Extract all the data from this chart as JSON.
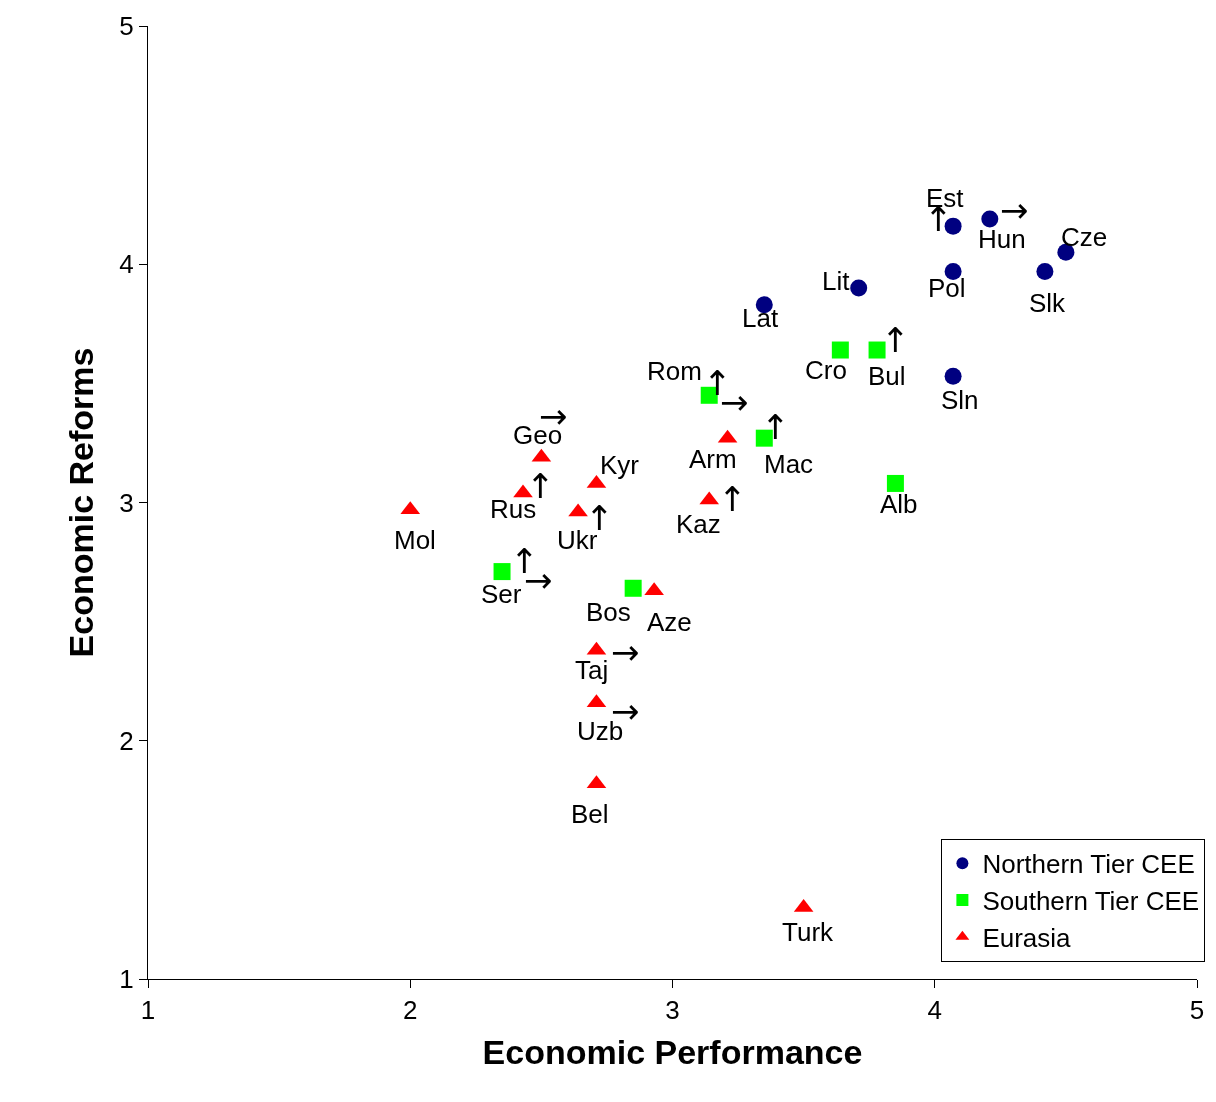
{
  "chart_data": {
    "type": "scatter",
    "xlabel": "Economic Performance",
    "ylabel": "Economic Reforms",
    "xlim": [
      1,
      5
    ],
    "xticks": [
      1,
      2,
      3,
      4,
      5
    ],
    "ylim": [
      1,
      5
    ],
    "yticks": [
      1,
      2,
      3,
      4,
      5
    ],
    "legend": "bottom right",
    "series": [
      {
        "name": "Northern Tier CEE",
        "color": "#000080",
        "marker": "circle",
        "x": [
          4.07,
          4.21,
          4.5,
          4.07,
          4.42,
          3.71,
          3.35,
          4.07
        ],
        "values": [
          4.16,
          4.19,
          4.05,
          3.97,
          3.97,
          3.9,
          3.83,
          3.53
        ]
      },
      {
        "name": "Southern Tier CEE",
        "color": "#00ff00",
        "marker": "square",
        "x": [
          3.64,
          3.78,
          3.14,
          3.35,
          3.85,
          2.35,
          2.85
        ],
        "values": [
          3.64,
          3.64,
          3.45,
          3.27,
          3.08,
          2.71,
          2.64
        ]
      },
      {
        "name": "Eurasia",
        "color": "#ff0000",
        "marker": "triangle",
        "x": [
          2.5,
          2.71,
          2.43,
          2.64,
          2.0,
          3.21,
          3.14,
          2.93,
          2.71,
          2.71,
          2.71,
          3.5
        ],
        "values": [
          3.19,
          3.08,
          3.04,
          2.96,
          2.97,
          3.27,
          3.01,
          2.63,
          2.38,
          2.16,
          1.82,
          1.3
        ]
      }
    ],
    "annotations": [
      {
        "text": "Est",
        "x": 4.07,
        "y": 4.16
      },
      {
        "text": "Hun",
        "x": 4.21,
        "y": 4.19
      },
      {
        "text": "Cze",
        "x": 4.5,
        "y": 4.05
      },
      {
        "text": "Lit",
        "x": 3.71,
        "y": 3.9
      },
      {
        "text": "Pol",
        "x": 4.07,
        "y": 3.97
      },
      {
        "text": "Slk",
        "x": 4.42,
        "y": 3.97
      },
      {
        "text": "Lat",
        "x": 3.35,
        "y": 3.83
      },
      {
        "text": "Sln",
        "x": 4.07,
        "y": 3.53
      },
      {
        "text": "Cro",
        "x": 3.64,
        "y": 3.64
      },
      {
        "text": "Bul",
        "x": 3.78,
        "y": 3.64
      },
      {
        "text": "Rom",
        "x": 3.14,
        "y": 3.45
      },
      {
        "text": "Mac",
        "x": 3.35,
        "y": 3.27
      },
      {
        "text": "Alb",
        "x": 3.85,
        "y": 3.08
      },
      {
        "text": "Arm",
        "x": 3.21,
        "y": 3.27
      },
      {
        "text": "Kaz",
        "x": 3.14,
        "y": 3.01
      },
      {
        "text": "Geo",
        "x": 2.5,
        "y": 3.19
      },
      {
        "text": "Kyr",
        "x": 2.71,
        "y": 3.08
      },
      {
        "text": "Rus",
        "x": 2.43,
        "y": 3.04
      },
      {
        "text": "Ukr",
        "x": 2.64,
        "y": 2.96
      },
      {
        "text": "Mol",
        "x": 2.0,
        "y": 2.97
      },
      {
        "text": "Ser",
        "x": 2.35,
        "y": 2.71
      },
      {
        "text": "Bos",
        "x": 2.85,
        "y": 2.64
      },
      {
        "text": "Aze",
        "x": 2.93,
        "y": 2.63
      },
      {
        "text": "Taj",
        "x": 2.71,
        "y": 2.38
      },
      {
        "text": "Uzb",
        "x": 2.71,
        "y": 2.16
      },
      {
        "text": "Bel",
        "x": 2.71,
        "y": 1.82
      },
      {
        "text": "Turk",
        "x": 3.5,
        "y": 1.3
      },
      {
        "text": "↑",
        "x": 4.07,
        "y": 4.16
      },
      {
        "text": "↑",
        "x": 3.78,
        "y": 3.64
      },
      {
        "text": "↑",
        "x": 3.14,
        "y": 3.45
      },
      {
        "text": "↑",
        "x": 3.35,
        "y": 3.27
      },
      {
        "text": "↑",
        "x": 2.43,
        "y": 3.04
      },
      {
        "text": "↑",
        "x": 2.64,
        "y": 2.96
      },
      {
        "text": "↑",
        "x": 3.14,
        "y": 3.01
      },
      {
        "text": "↑",
        "x": 2.35,
        "y": 2.71
      },
      {
        "text": "→",
        "x": 4.21,
        "y": 4.19
      },
      {
        "text": "→",
        "x": 2.5,
        "y": 3.19
      },
      {
        "text": "→",
        "x": 3.14,
        "y": 3.45
      },
      {
        "text": "→",
        "x": 2.35,
        "y": 2.71
      },
      {
        "text": "→",
        "x": 2.71,
        "y": 2.38
      },
      {
        "text": "→",
        "x": 2.71,
        "y": 2.16
      }
    ]
  }
}
